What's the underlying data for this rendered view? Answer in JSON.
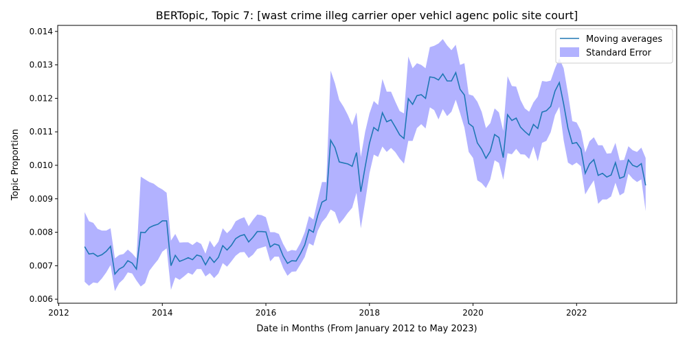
{
  "chart_data": {
    "type": "line",
    "title": "BERTopic, Topic 7: [wast crime illeg carrier oper vehicl agenc polic site court]",
    "xlabel": "Date in Months (From January 2012 to May 2023)",
    "ylabel": "Topic Proportion",
    "xlim": [
      "2011-12-24",
      "2023-12-07"
    ],
    "ylim": [
      0.00588,
      0.01418
    ],
    "x_ticks": [
      "2012",
      "2014",
      "2016",
      "2018",
      "2020",
      "2022"
    ],
    "y_ticks": [
      "0.006",
      "0.007",
      "0.008",
      "0.009",
      "0.010",
      "0.011",
      "0.012",
      "0.013",
      "0.014"
    ],
    "legend": {
      "position": "top-right",
      "entries": [
        "Moving averages",
        "Standard Error"
      ]
    },
    "colors": {
      "line": "#1f77b4",
      "band": "#0000ff",
      "band_opacity": 0.3
    },
    "series": [
      {
        "name": "Moving averages",
        "x": [
          "2012-07",
          "2012-08",
          "2012-09",
          "2012-10",
          "2012-11",
          "2012-12",
          "2013-01",
          "2013-02",
          "2013-03",
          "2013-04",
          "2013-05",
          "2013-06",
          "2013-07",
          "2013-08",
          "2013-09",
          "2013-10",
          "2013-11",
          "2013-12",
          "2014-01",
          "2014-02",
          "2014-03",
          "2014-04",
          "2014-05",
          "2014-06",
          "2014-07",
          "2014-08",
          "2014-09",
          "2014-10",
          "2014-11",
          "2014-12",
          "2015-01",
          "2015-02",
          "2015-03",
          "2015-04",
          "2015-05",
          "2015-06",
          "2015-07",
          "2015-08",
          "2015-09",
          "2015-10",
          "2015-11",
          "2015-12",
          "2016-01",
          "2016-02",
          "2016-03",
          "2016-04",
          "2016-05",
          "2016-06",
          "2016-07",
          "2016-08",
          "2016-09",
          "2016-10",
          "2016-11",
          "2016-12",
          "2017-01",
          "2017-02",
          "2017-03",
          "2017-04",
          "2017-05",
          "2017-06",
          "2017-07",
          "2017-08",
          "2017-09",
          "2017-10",
          "2017-11",
          "2017-12",
          "2018-01",
          "2018-02",
          "2018-03",
          "2018-04",
          "2018-05",
          "2018-06",
          "2018-07",
          "2018-08",
          "2018-09",
          "2018-10",
          "2018-11",
          "2018-12",
          "2019-01",
          "2019-02",
          "2019-03",
          "2019-04",
          "2019-05",
          "2019-06",
          "2019-07",
          "2019-08",
          "2019-09",
          "2019-10",
          "2019-11",
          "2019-12",
          "2020-01",
          "2020-02",
          "2020-03",
          "2020-04",
          "2020-05",
          "2020-06",
          "2020-07",
          "2020-08",
          "2020-09",
          "2020-10",
          "2020-11",
          "2020-12",
          "2021-01",
          "2021-02",
          "2021-03",
          "2021-04",
          "2021-05",
          "2021-06",
          "2021-07",
          "2021-08",
          "2021-09",
          "2021-10",
          "2021-11",
          "2021-12",
          "2022-01",
          "2022-02",
          "2022-03",
          "2022-04",
          "2022-05",
          "2022-06",
          "2022-07",
          "2022-08",
          "2022-09",
          "2022-10",
          "2022-11",
          "2022-12",
          "2023-01",
          "2023-02",
          "2023-03",
          "2023-04",
          "2023-05"
        ],
        "values": [
          0.00757,
          0.00735,
          0.00737,
          0.00728,
          0.00733,
          0.00743,
          0.00758,
          0.00675,
          0.0069,
          0.00697,
          0.00715,
          0.00708,
          0.0069,
          0.008,
          0.00799,
          0.00814,
          0.0082,
          0.00824,
          0.00834,
          0.00834,
          0.007,
          0.00731,
          0.00713,
          0.00718,
          0.00724,
          0.00718,
          0.00732,
          0.00728,
          0.00703,
          0.00726,
          0.0071,
          0.00725,
          0.0076,
          0.00747,
          0.00761,
          0.00781,
          0.00789,
          0.00793,
          0.00771,
          0.00785,
          0.00802,
          0.00802,
          0.00801,
          0.00756,
          0.00765,
          0.00761,
          0.00729,
          0.00707,
          0.00715,
          0.00714,
          0.00736,
          0.00762,
          0.00808,
          0.008,
          0.0085,
          0.0089,
          0.00897,
          0.01075,
          0.01053,
          0.0101,
          0.01007,
          0.01004,
          0.00997,
          0.01038,
          0.00921,
          0.00995,
          0.01066,
          0.01113,
          0.01103,
          0.01157,
          0.0113,
          0.01136,
          0.01114,
          0.01091,
          0.0108,
          0.01199,
          0.01182,
          0.01208,
          0.01211,
          0.012,
          0.01264,
          0.01262,
          0.01255,
          0.01273,
          0.01252,
          0.01252,
          0.01277,
          0.01227,
          0.0121,
          0.01125,
          0.01115,
          0.01067,
          0.01048,
          0.01021,
          0.01042,
          0.01092,
          0.01083,
          0.01023,
          0.01151,
          0.01134,
          0.01141,
          0.01114,
          0.01101,
          0.0109,
          0.01122,
          0.0111,
          0.01159,
          0.01163,
          0.01176,
          0.01222,
          0.01247,
          0.01183,
          0.01111,
          0.01065,
          0.01068,
          0.01049,
          0.00976,
          0.01004,
          0.01017,
          0.0097,
          0.00976,
          0.00965,
          0.00971,
          0.01008,
          0.00961,
          0.00966,
          0.01016,
          0.01,
          0.00995,
          0.01005,
          0.0094
        ]
      },
      {
        "name": "Standard Error",
        "upper": [
          0.0086,
          0.00833,
          0.00828,
          0.0081,
          0.00805,
          0.00805,
          0.00812,
          0.00722,
          0.00732,
          0.00735,
          0.00748,
          0.00737,
          0.00722,
          0.00966,
          0.00958,
          0.0095,
          0.00945,
          0.00935,
          0.00928,
          0.00918,
          0.00775,
          0.00795,
          0.00769,
          0.0077,
          0.0077,
          0.00762,
          0.00772,
          0.00765,
          0.00736,
          0.00775,
          0.00755,
          0.00772,
          0.00812,
          0.00797,
          0.0081,
          0.00833,
          0.0084,
          0.00845,
          0.00818,
          0.00837,
          0.00853,
          0.00851,
          0.00845,
          0.008,
          0.008,
          0.00795,
          0.00765,
          0.00742,
          0.00747,
          0.00745,
          0.00768,
          0.008,
          0.00848,
          0.00838,
          0.00895,
          0.0095,
          0.0095,
          0.01283,
          0.01245,
          0.01195,
          0.01175,
          0.0115,
          0.0112,
          0.01158,
          0.01025,
          0.011,
          0.01155,
          0.01192,
          0.0118,
          0.01258,
          0.0122,
          0.0122,
          0.0119,
          0.01162,
          0.01155,
          0.01325,
          0.0129,
          0.01305,
          0.013,
          0.0129,
          0.01353,
          0.01357,
          0.01364,
          0.01377,
          0.01358,
          0.01344,
          0.0136,
          0.013,
          0.01305,
          0.01212,
          0.01208,
          0.0119,
          0.0116,
          0.01111,
          0.01126,
          0.0117,
          0.01158,
          0.01103,
          0.01266,
          0.01237,
          0.01235,
          0.01195,
          0.0117,
          0.0116,
          0.01188,
          0.01205,
          0.01252,
          0.0125,
          0.01253,
          0.0129,
          0.0132,
          0.0129,
          0.01215,
          0.01132,
          0.01128,
          0.01103,
          0.01038,
          0.01072,
          0.01084,
          0.0106,
          0.0106,
          0.01035,
          0.01036,
          0.01067,
          0.01015,
          0.01016,
          0.01057,
          0.01045,
          0.0104,
          0.01053,
          0.01022
        ],
        "lower": [
          0.00652,
          0.0064,
          0.0065,
          0.00648,
          0.00662,
          0.0068,
          0.00702,
          0.00624,
          0.00648,
          0.0066,
          0.0068,
          0.00677,
          0.00656,
          0.00638,
          0.00648,
          0.00685,
          0.00702,
          0.00718,
          0.00742,
          0.00752,
          0.00628,
          0.00665,
          0.00658,
          0.00668,
          0.00679,
          0.00673,
          0.0069,
          0.0069,
          0.00668,
          0.00678,
          0.00663,
          0.00677,
          0.00708,
          0.00697,
          0.00713,
          0.0073,
          0.0074,
          0.00741,
          0.00723,
          0.00733,
          0.0075,
          0.00754,
          0.00758,
          0.00713,
          0.00727,
          0.00727,
          0.00693,
          0.0067,
          0.00682,
          0.00683,
          0.00704,
          0.00726,
          0.00767,
          0.0076,
          0.00804,
          0.0083,
          0.00845,
          0.00868,
          0.0086,
          0.00825,
          0.0084,
          0.00858,
          0.00873,
          0.00918,
          0.00812,
          0.0089,
          0.00976,
          0.01032,
          0.01025,
          0.01056,
          0.0104,
          0.01052,
          0.01039,
          0.0102,
          0.01005,
          0.01073,
          0.01073,
          0.01111,
          0.01123,
          0.0111,
          0.01173,
          0.01165,
          0.01137,
          0.01168,
          0.01147,
          0.0116,
          0.01196,
          0.01156,
          0.01113,
          0.0104,
          0.01022,
          0.00955,
          0.00947,
          0.00932,
          0.00958,
          0.01015,
          0.01007,
          0.00957,
          0.01036,
          0.01033,
          0.01049,
          0.01033,
          0.01032,
          0.01019,
          0.01056,
          0.01012,
          0.01067,
          0.01073,
          0.01099,
          0.0115,
          0.01175,
          0.01075,
          0.01008,
          0.01,
          0.01008,
          0.00997,
          0.00913,
          0.00935,
          0.00955,
          0.00885,
          0.00898,
          0.00898,
          0.00907,
          0.00948,
          0.0091,
          0.00918,
          0.00975,
          0.0096,
          0.0095,
          0.00958,
          0.00863
        ]
      }
    ]
  }
}
